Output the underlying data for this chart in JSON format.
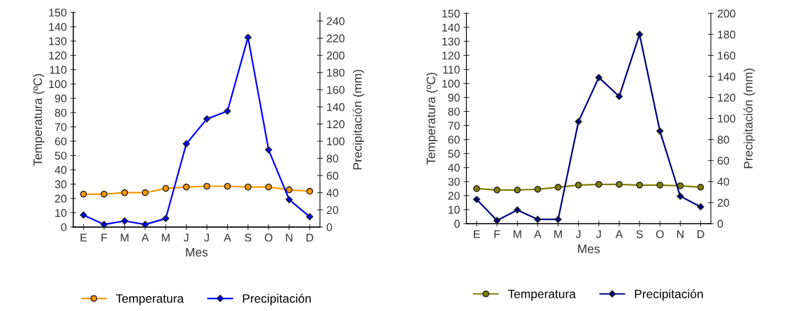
{
  "chart_data": [
    {
      "type": "line",
      "categories": [
        "E",
        "F",
        "M",
        "A",
        "M",
        "J",
        "J",
        "A",
        "S",
        "O",
        "N",
        "D"
      ],
      "xlabel": "Mes",
      "ylabel": "Temperatura (ºC)",
      "y2label": "Precipitación (mm)",
      "ylim": [
        0,
        150
      ],
      "yticks": [
        0,
        10,
        20,
        30,
        40,
        50,
        60,
        70,
        80,
        90,
        100,
        110,
        120,
        130,
        140,
        150
      ],
      "y2lim": [
        0,
        250
      ],
      "y2ticks": [
        0,
        20,
        40,
        60,
        80,
        100,
        120,
        140,
        160,
        180,
        200,
        220,
        240
      ],
      "legend": "bottom",
      "grid": false,
      "series": [
        {
          "name": "Temperatura",
          "color": "#ff9900",
          "marker": "circle",
          "values": [
            23,
            23,
            24,
            24,
            27,
            28,
            28.5,
            28.5,
            28,
            28,
            26,
            25
          ]
        },
        {
          "name": "Precipitación",
          "color": "#0000ff",
          "marker": "diamond",
          "axis": "y2",
          "values": [
            14,
            3,
            7,
            3,
            10,
            97,
            126,
            135,
            221,
            90,
            32,
            12
          ]
        }
      ]
    },
    {
      "type": "line",
      "categories": [
        "E",
        "F",
        "M",
        "A",
        "M",
        "J",
        "J",
        "A",
        "S",
        "O",
        "N",
        "D"
      ],
      "xlabel": "Mes",
      "ylabel": "Temperatura (ºC)",
      "y2label": "Precipitación (mm)",
      "ylim": [
        0,
        150
      ],
      "yticks": [
        0,
        10,
        20,
        30,
        40,
        50,
        60,
        70,
        80,
        90,
        100,
        110,
        120,
        130,
        140,
        150
      ],
      "y2lim": [
        0,
        200
      ],
      "y2ticks": [
        0,
        20,
        40,
        60,
        80,
        100,
        120,
        140,
        160,
        180,
        200
      ],
      "legend": "bottom",
      "grid": false,
      "series": [
        {
          "name": "Temperatura",
          "color": "#808000",
          "marker": "circle",
          "values": [
            25,
            24,
            24,
            24.5,
            26,
            27.5,
            28,
            28,
            27.5,
            27.5,
            27,
            26
          ]
        },
        {
          "name": "Precipitación",
          "color": "#000080",
          "marker": "diamond",
          "axis": "y2",
          "values": [
            23,
            3,
            13,
            4,
            4,
            97,
            139,
            121,
            180,
            88,
            26,
            16
          ]
        }
      ]
    }
  ]
}
